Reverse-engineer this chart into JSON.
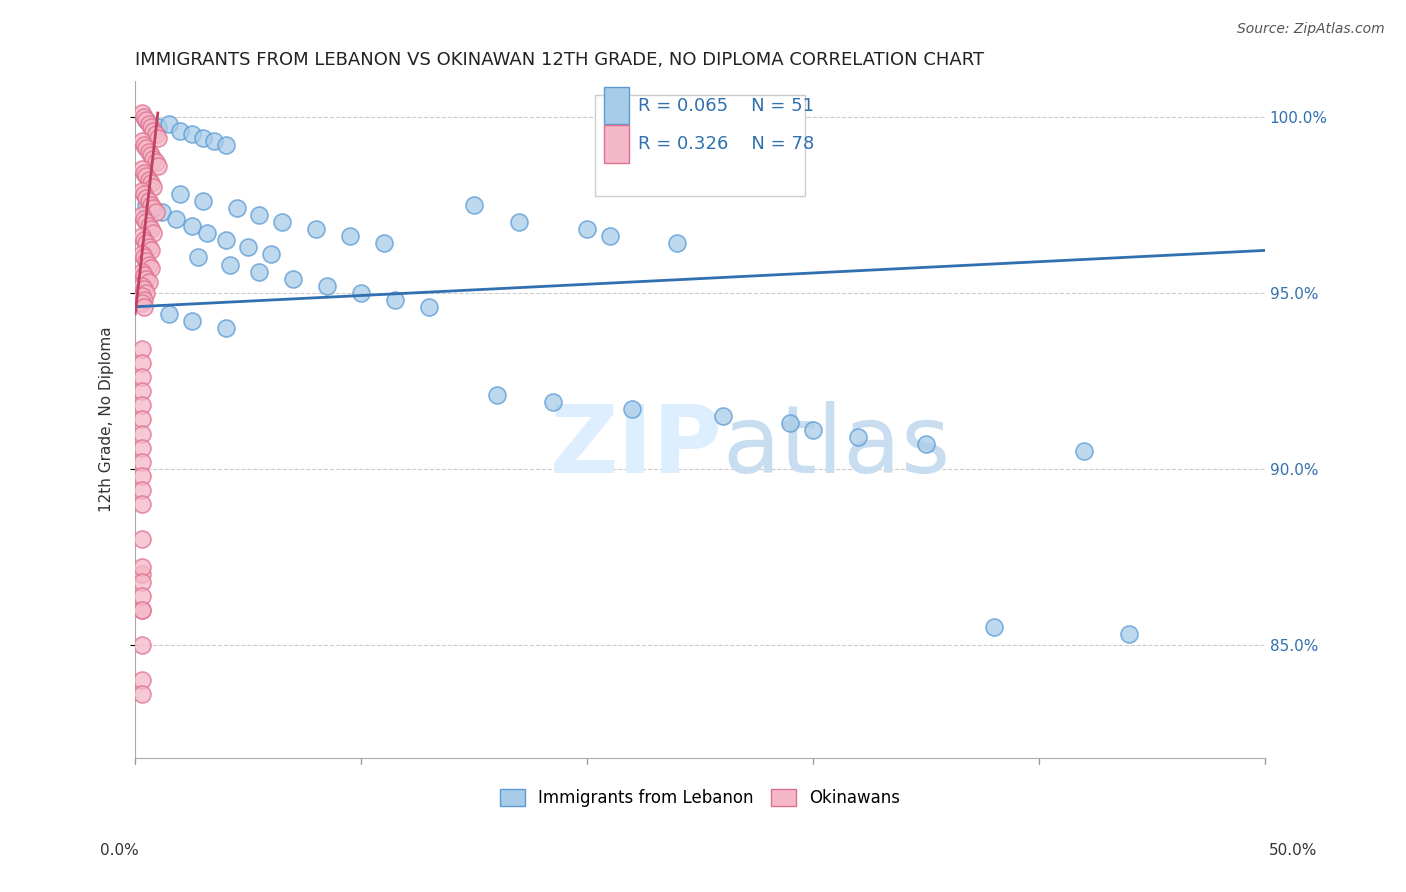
{
  "title": "IMMIGRANTS FROM LEBANON VS OKINAWAN 12TH GRADE, NO DIPLOMA CORRELATION CHART",
  "source": "Source: ZipAtlas.com",
  "ylabel": "12th Grade, No Diploma",
  "xlim": [
    0,
    0.5
  ],
  "ylim": [
    0.818,
    1.01
  ],
  "ytick_positions": [
    0.85,
    0.9,
    0.95,
    1.0
  ],
  "ytick_labels": [
    "85.0%",
    "90.0%",
    "95.0%",
    "100.0%"
  ],
  "xtick_positions": [
    0.0,
    0.1,
    0.2,
    0.3,
    0.4,
    0.5
  ],
  "legend_blue_r": "R = 0.065",
  "legend_blue_n": "N = 51",
  "legend_pink_r": "R = 0.326",
  "legend_pink_n": "N = 78",
  "blue_scatter_color": "#a8cce8",
  "blue_edge_color": "#5b9bd5",
  "pink_scatter_color": "#f4b8c8",
  "pink_edge_color": "#e07090",
  "blue_line_color": "#3070b0",
  "pink_line_color": "#c04060",
  "background_color": "#ffffff",
  "grid_color": "#cccccc",
  "blue_scatter_x": [
    0.005,
    0.01,
    0.015,
    0.02,
    0.025,
    0.03,
    0.035,
    0.04,
    0.005,
    0.012,
    0.018,
    0.025,
    0.032,
    0.04,
    0.05,
    0.06,
    0.02,
    0.03,
    0.045,
    0.055,
    0.065,
    0.08,
    0.095,
    0.11,
    0.028,
    0.042,
    0.055,
    0.07,
    0.085,
    0.1,
    0.115,
    0.13,
    0.015,
    0.025,
    0.04,
    0.15,
    0.17,
    0.2,
    0.21,
    0.24,
    0.16,
    0.185,
    0.22,
    0.26,
    0.29,
    0.3,
    0.38,
    0.44,
    0.32,
    0.35,
    0.42
  ],
  "blue_scatter_y": [
    0.999,
    0.997,
    0.998,
    0.996,
    0.995,
    0.994,
    0.993,
    0.992,
    0.975,
    0.973,
    0.971,
    0.969,
    0.967,
    0.965,
    0.963,
    0.961,
    0.978,
    0.976,
    0.974,
    0.972,
    0.97,
    0.968,
    0.966,
    0.964,
    0.96,
    0.958,
    0.956,
    0.954,
    0.952,
    0.95,
    0.948,
    0.946,
    0.944,
    0.942,
    0.94,
    0.975,
    0.97,
    0.968,
    0.966,
    0.964,
    0.921,
    0.919,
    0.917,
    0.915,
    0.913,
    0.911,
    0.855,
    0.853,
    0.909,
    0.907,
    0.905
  ],
  "pink_scatter_x": [
    0.003,
    0.004,
    0.005,
    0.006,
    0.007,
    0.008,
    0.009,
    0.01,
    0.003,
    0.004,
    0.005,
    0.006,
    0.007,
    0.008,
    0.009,
    0.01,
    0.003,
    0.004,
    0.005,
    0.006,
    0.007,
    0.008,
    0.003,
    0.004,
    0.005,
    0.006,
    0.007,
    0.008,
    0.009,
    0.003,
    0.004,
    0.005,
    0.006,
    0.007,
    0.008,
    0.003,
    0.004,
    0.005,
    0.006,
    0.007,
    0.003,
    0.004,
    0.005,
    0.006,
    0.007,
    0.003,
    0.004,
    0.005,
    0.006,
    0.003,
    0.004,
    0.005,
    0.003,
    0.004,
    0.003,
    0.004,
    0.003,
    0.003,
    0.003,
    0.003,
    0.003,
    0.003,
    0.003,
    0.003,
    0.003,
    0.003,
    0.003,
    0.003,
    0.003,
    0.003,
    0.003,
    0.003,
    0.003,
    0.003,
    0.003,
    0.003,
    0.003,
    0.003
  ],
  "pink_scatter_y": [
    1.001,
    1.0,
    0.999,
    0.998,
    0.997,
    0.996,
    0.995,
    0.994,
    0.993,
    0.992,
    0.991,
    0.99,
    0.989,
    0.988,
    0.987,
    0.986,
    0.985,
    0.984,
    0.983,
    0.982,
    0.981,
    0.98,
    0.979,
    0.978,
    0.977,
    0.976,
    0.975,
    0.974,
    0.973,
    0.972,
    0.971,
    0.97,
    0.969,
    0.968,
    0.967,
    0.966,
    0.965,
    0.964,
    0.963,
    0.962,
    0.961,
    0.96,
    0.959,
    0.958,
    0.957,
    0.956,
    0.955,
    0.954,
    0.953,
    0.952,
    0.951,
    0.95,
    0.949,
    0.948,
    0.947,
    0.946,
    0.934,
    0.93,
    0.926,
    0.922,
    0.918,
    0.914,
    0.91,
    0.906,
    0.902,
    0.898,
    0.894,
    0.89,
    0.88,
    0.87,
    0.86,
    0.85,
    0.84,
    0.836,
    0.872,
    0.868,
    0.864,
    0.86
  ],
  "blue_trendline_x": [
    0.0,
    0.5
  ],
  "blue_trendline_y": [
    0.946,
    0.962
  ],
  "pink_trendline_x": [
    0.0,
    0.01
  ],
  "pink_trendline_y": [
    0.944,
    1.001
  ],
  "watermark_zip": "ZIP",
  "watermark_atlas": "atlas",
  "watermark_color": "#ddeeff",
  "legend_blue_label": "Immigrants from Lebanon",
  "legend_pink_label": "Okinawans",
  "title_fontsize": 13,
  "axis_label_fontsize": 11,
  "tick_fontsize": 11
}
